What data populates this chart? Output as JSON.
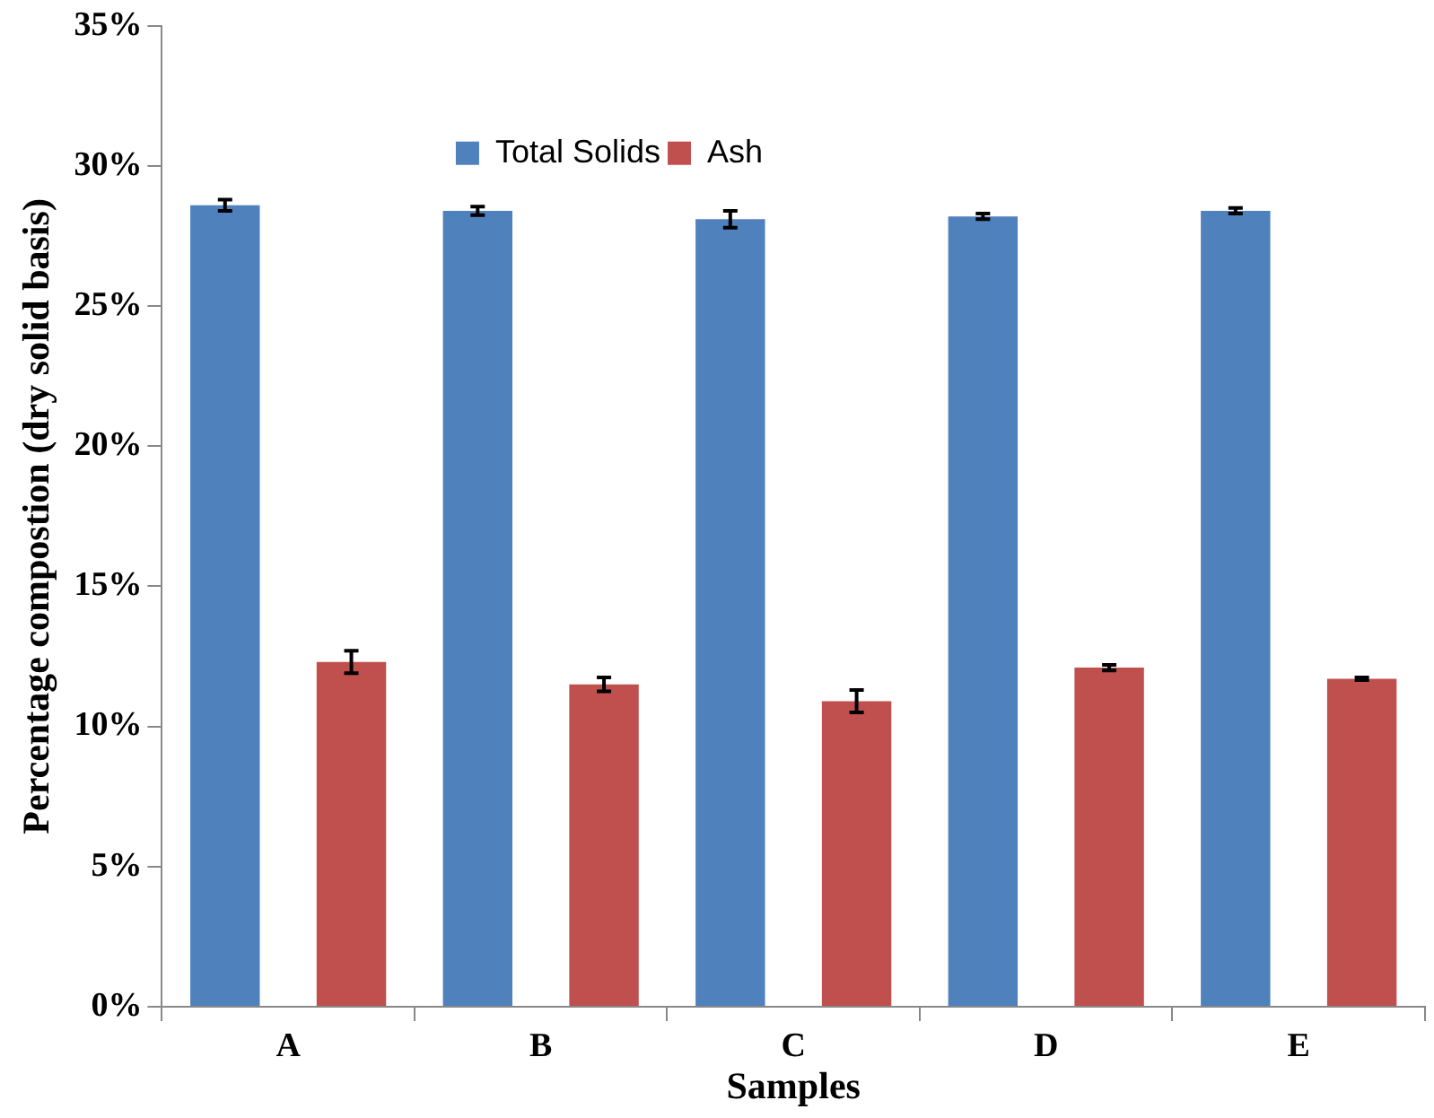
{
  "chart_data": {
    "type": "bar",
    "xlabel": "Samples",
    "ylabel": "Percentage compostion (dry solid basis)",
    "categories": [
      "A",
      "B",
      "C",
      "D",
      "E"
    ],
    "series": [
      {
        "name": "Total Solids",
        "color": "#4f81bd",
        "values": [
          28.6,
          28.4,
          28.1,
          28.2,
          28.4
        ],
        "errors": [
          0.2,
          0.15,
          0.3,
          0.1,
          0.1
        ]
      },
      {
        "name": "Ash",
        "color": "#c0504d",
        "values": [
          12.3,
          11.5,
          10.9,
          12.1,
          11.7
        ],
        "errors": [
          0.4,
          0.25,
          0.4,
          0.1,
          0.05
        ]
      }
    ],
    "ylim": [
      0,
      35
    ],
    "yticks": [
      {
        "value": 0,
        "label": "0%"
      },
      {
        "value": 5,
        "label": "5%"
      },
      {
        "value": 10,
        "label": "10%"
      },
      {
        "value": 15,
        "label": "15%"
      },
      {
        "value": 20,
        "label": "20%"
      },
      {
        "value": 25,
        "label": "25%"
      },
      {
        "value": 30,
        "label": "30%"
      },
      {
        "value": 35,
        "label": "35%"
      }
    ],
    "grid": false,
    "legend": "top"
  }
}
